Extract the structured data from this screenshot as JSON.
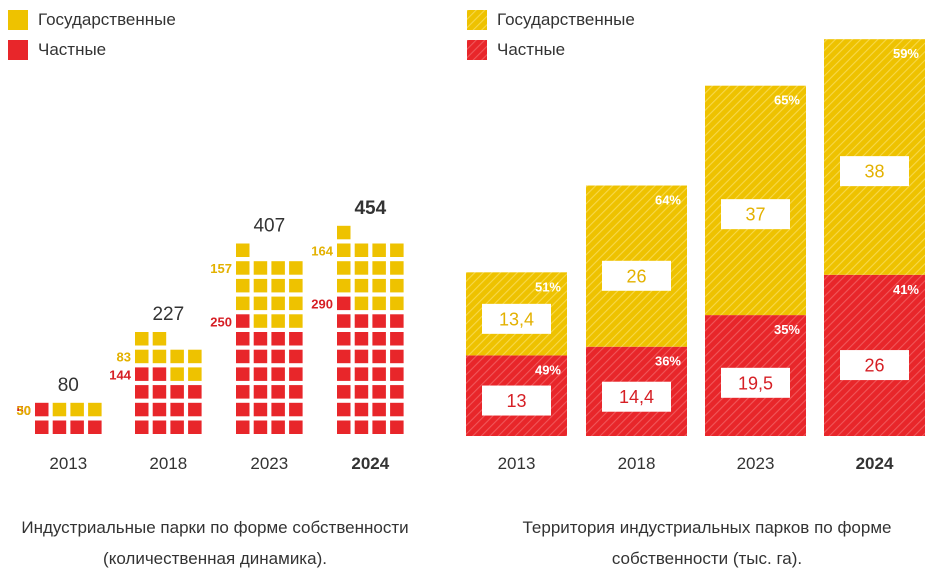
{
  "colors": {
    "gov": "#EEC200",
    "private": "#E8262A",
    "gov_label": "#E3B100",
    "private_label": "#D61F25",
    "text": "#333333"
  },
  "legend_left": {
    "gov": "Государственные",
    "private": "Частные"
  },
  "legend_right": {
    "gov": "Государственные",
    "private": "Частные"
  },
  "chart_data": [
    {
      "type": "bar",
      "stacked": true,
      "style": "waffle",
      "categories": [
        "2013",
        "2018",
        "2023",
        "2024"
      ],
      "highlight_category": "2024",
      "series": [
        {
          "name": "Частные",
          "values": [
            50,
            144,
            250,
            290
          ]
        },
        {
          "name": "Государственные",
          "values": [
            30,
            83,
            157,
            164
          ]
        }
      ],
      "totals": [
        80,
        227,
        407,
        454
      ],
      "title": "Индустриальные парки по форме собственности (количественная динамика).",
      "legend": "top-left"
    },
    {
      "type": "bar",
      "stacked": true,
      "style": "hatched",
      "categories": [
        "2013",
        "2018",
        "2023",
        "2024"
      ],
      "highlight_category": "2024",
      "series": [
        {
          "name": "Частные",
          "values": [
            "13",
            "14,4",
            "19,5",
            "26"
          ],
          "shares": [
            "49%",
            "36%",
            "35%",
            "41%"
          ]
        },
        {
          "name": "Государственные",
          "values": [
            "13,4",
            "26",
            "37",
            "38"
          ],
          "shares": [
            "51%",
            "64%",
            "65%",
            "59%"
          ]
        }
      ],
      "title": "Территория индустриальных парков по форме собственности (тыс. га).",
      "legend": "top-left"
    }
  ]
}
